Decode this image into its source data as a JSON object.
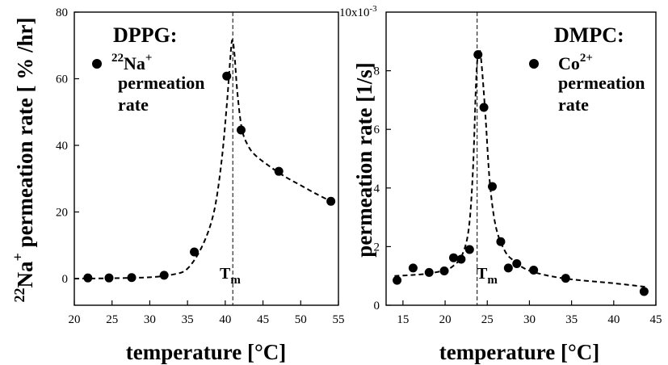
{
  "chart_data": [
    {
      "type": "scatter",
      "title": "DPPG:",
      "legend_label": "22Na+ permeation rate",
      "legend_sup_pre": "22",
      "legend_main": "Na",
      "legend_sup_post": "+",
      "legend_line2": "permeation",
      "legend_line3": "rate",
      "xlabel": "temperature [°C]",
      "ylabel": "22Na+ permeation rate [ % /hr]",
      "ylabel_sup": "22",
      "ylabel_main": "Na",
      "ylabel_sup2": "+",
      "ylabel_rest": " permeation rate [ % /hr]",
      "xlim": [
        20,
        55
      ],
      "ylim": [
        -8,
        80
      ],
      "xticks": [
        20,
        25,
        30,
        35,
        40,
        45,
        50,
        55
      ],
      "yticks": [
        0,
        20,
        40,
        60,
        80
      ],
      "tm_label": "T",
      "tm_sub": "m",
      "tm_value": 41,
      "series": [
        {
          "name": "data",
          "x": [
            21.8,
            24.6,
            27.6,
            31.9,
            35.9,
            40.2,
            42.1,
            47.1,
            54.0
          ],
          "y": [
            0.2,
            0.2,
            0.3,
            1.0,
            8.0,
            60.8,
            44.6,
            32.2,
            23.2
          ]
        }
      ],
      "fit": {
        "x": [
          20,
          25,
          30,
          33,
          35,
          37,
          38.5,
          39.5,
          40.2,
          40.6,
          40.9,
          41.2,
          41.6,
          42.2,
          43,
          44,
          46,
          48,
          50,
          52,
          54
        ],
        "y": [
          0.0,
          0.1,
          0.4,
          1.2,
          3.0,
          10,
          20,
          35,
          52,
          64,
          71.5,
          68,
          56,
          45,
          40,
          37,
          33.5,
          30.5,
          28,
          25.5,
          23.2
        ]
      }
    },
    {
      "type": "scatter",
      "title": "DMPC:",
      "legend_label": "Co2+ permeation rate",
      "legend_main": "Co",
      "legend_sup_post": "2+",
      "legend_line2": "permeation",
      "legend_line3": "rate",
      "xlabel": "temperature [°C]",
      "ylabel": "permeation rate [1/s]",
      "y_multiplier": "10x10",
      "y_multiplier_exp": "-3",
      "xlim": [
        13,
        45
      ],
      "ylim": [
        0,
        10
      ],
      "xticks": [
        15,
        20,
        25,
        30,
        35,
        40,
        45
      ],
      "yticks": [
        0,
        2,
        4,
        6,
        8
      ],
      "tm_label": "T",
      "tm_sub": "m",
      "tm_value": 23.8,
      "series": [
        {
          "name": "data",
          "x": [
            14.3,
            16.2,
            18.1,
            19.9,
            21.0,
            21.9,
            22.9,
            23.9,
            24.6,
            25.6,
            26.6,
            27.5,
            28.5,
            30.5,
            34.3,
            43.6
          ],
          "y": [
            0.85,
            1.27,
            1.12,
            1.17,
            1.62,
            1.57,
            1.9,
            8.55,
            6.75,
            4.05,
            2.17,
            1.27,
            1.42,
            1.2,
            0.92,
            0.47
          ]
        }
      ],
      "fit": {
        "x": [
          14,
          16,
          18,
          20,
          21,
          22,
          22.8,
          23.3,
          23.7,
          24.0,
          24.3,
          24.8,
          25.3,
          26,
          27,
          28,
          30,
          34,
          40,
          44
        ],
        "y": [
          1.0,
          1.03,
          1.08,
          1.2,
          1.35,
          1.7,
          2.6,
          4.6,
          7.8,
          8.7,
          8.3,
          6.4,
          4.2,
          2.7,
          1.9,
          1.55,
          1.18,
          0.92,
          0.75,
          0.62
        ]
      }
    }
  ]
}
